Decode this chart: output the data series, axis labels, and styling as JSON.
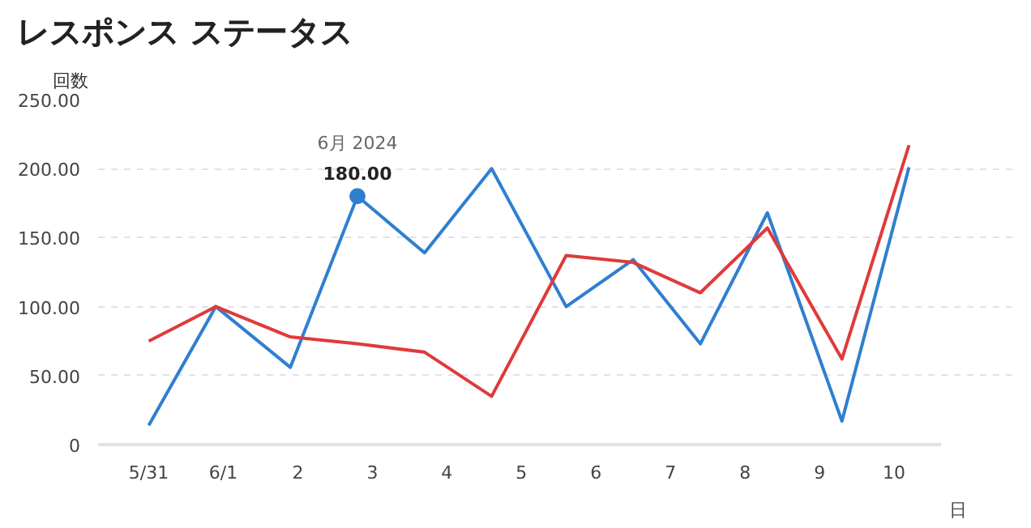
{
  "chart_data": {
    "type": "line",
    "title": "レスポンス ステータス",
    "ylabel": "回数",
    "xlabel": "日",
    "x": [
      0,
      0.9,
      1.9,
      2.8,
      3.7,
      4.6,
      5.6,
      6.5,
      7.4,
      8.3,
      9.3,
      10.2
    ],
    "series": [
      {
        "color": "#2f7fd0",
        "values": [
          14,
          100,
          56,
          180,
          139,
          200,
          100,
          134,
          73,
          168,
          17,
          201
        ]
      },
      {
        "color": "#e03a3a",
        "values": [
          75,
          100,
          78,
          73,
          67,
          35,
          137,
          132,
          110,
          157,
          62,
          217
        ]
      }
    ],
    "xlim": [
      -0.68,
      10.63
    ],
    "ylim": [
      0,
      250
    ],
    "xticks": [
      {
        "value": 0,
        "label": "5/31"
      },
      {
        "value": 1,
        "label": "6/1"
      },
      {
        "value": 2,
        "label": "2"
      },
      {
        "value": 3,
        "label": "3"
      },
      {
        "value": 4,
        "label": "4"
      },
      {
        "value": 5,
        "label": "5"
      },
      {
        "value": 6,
        "label": "6"
      },
      {
        "value": 7,
        "label": "7"
      },
      {
        "value": 8,
        "label": "8"
      },
      {
        "value": 9,
        "label": "9"
      },
      {
        "value": 10,
        "label": "10"
      }
    ],
    "yticks": [
      0,
      {
        "value": 50,
        "label": "50.00"
      },
      {
        "value": 100,
        "label": "100.00"
      },
      {
        "value": 150,
        "label": "150.00"
      },
      {
        "value": 200,
        "label": "200.00"
      },
      {
        "value": 250,
        "label": "250.00"
      }
    ],
    "annotations": [
      {
        "text": "6月 2024",
        "x": 2.8,
        "y": 180
      },
      {
        "text": "180.00",
        "x": 2.8,
        "y": 180
      }
    ],
    "grid": "y",
    "marker": "none",
    "line_style": "solid"
  }
}
